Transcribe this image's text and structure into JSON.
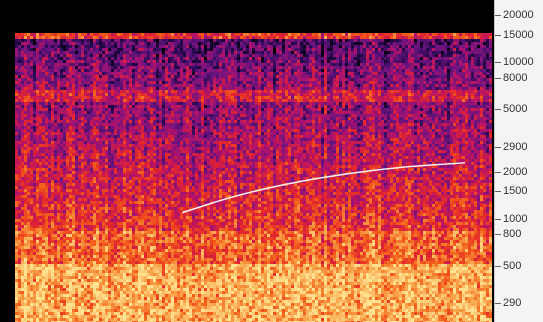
{
  "view": {
    "type": "spectrogram",
    "colormap": [
      "#000000",
      "#2a0a55",
      "#6b1480",
      "#b3126b",
      "#e2242f",
      "#f25c19",
      "#f7a048",
      "#fde28f"
    ],
    "overlay_color": "#f2f2f2"
  },
  "frequency_axis": {
    "scale": "log",
    "range_hz": [
      220,
      25000
    ],
    "ticks": [
      {
        "value": 20000,
        "label": "20000"
      },
      {
        "value": 15000,
        "label": "15000"
      },
      {
        "value": 10000,
        "label": "10000"
      },
      {
        "value": 8000,
        "label": "8000"
      },
      {
        "value": 5000,
        "label": "5000"
      },
      {
        "value": 2900,
        "label": "2900"
      },
      {
        "value": 2000,
        "label": "2000"
      },
      {
        "value": 1500,
        "label": "1500"
      },
      {
        "value": 1000,
        "label": "1000"
      },
      {
        "value": 800,
        "label": "800"
      },
      {
        "value": 500,
        "label": "500"
      },
      {
        "value": 290,
        "label": "290"
      }
    ]
  },
  "overlay_curve": {
    "time_fraction_points": [
      {
        "t": 0.37,
        "hz": 1100
      },
      {
        "t": 0.47,
        "hz": 1390
      },
      {
        "t": 0.58,
        "hz": 1680
      },
      {
        "t": 0.7,
        "hz": 1950
      },
      {
        "t": 0.82,
        "hz": 2160
      },
      {
        "t": 0.94,
        "hz": 2280
      }
    ]
  }
}
